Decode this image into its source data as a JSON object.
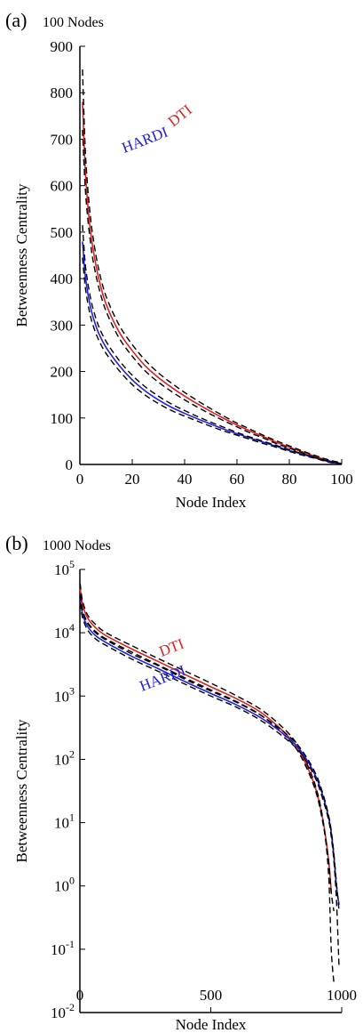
{
  "chart_data": [
    {
      "type": "line",
      "panel_label": "(a)",
      "title": "100 Nodes",
      "xlabel": "Node Index",
      "ylabel": "Betweenness Centrality",
      "xlim": [
        0,
        100
      ],
      "ylim": [
        0,
        900
      ],
      "xticks": [
        0,
        20,
        40,
        60,
        80,
        100
      ],
      "xtick_labels": [
        "0",
        "20",
        "40",
        "60",
        "80",
        "100"
      ],
      "yticks": [
        0,
        100,
        200,
        300,
        400,
        500,
        600,
        700,
        800,
        900
      ],
      "ytick_labels": [
        "0",
        "100",
        "200",
        "300",
        "400",
        "500",
        "600",
        "700",
        "800",
        "900"
      ],
      "grid": false,
      "x": [
        1,
        2,
        3,
        4,
        5,
        7,
        10,
        15,
        20,
        25,
        30,
        35,
        40,
        45,
        50,
        55,
        60,
        65,
        70,
        75,
        80,
        85,
        90,
        95,
        100
      ],
      "series": [
        {
          "name": "DTI",
          "color": "#e02020",
          "values": [
            780,
            640,
            560,
            505,
            465,
            405,
            345,
            285,
            245,
            212,
            187,
            166,
            147,
            130,
            114,
            99,
            85,
            72,
            60,
            48,
            37,
            27,
            17,
            8,
            2
          ]
        },
        {
          "name": "",
          "color": "#000000",
          "dashed": true,
          "values": [
            850,
            685,
            595,
            535,
            490,
            425,
            362,
            300,
            258,
            224,
            197,
            175,
            155,
            137,
            120,
            104,
            89,
            76,
            63,
            51,
            40,
            29,
            19,
            10,
            3
          ]
        },
        {
          "name": "",
          "color": "#000000",
          "dashed": true,
          "values": [
            720,
            600,
            530,
            480,
            440,
            386,
            330,
            272,
            233,
            201,
            177,
            157,
            139,
            123,
            108,
            94,
            81,
            68,
            57,
            45,
            35,
            25,
            15,
            7,
            1
          ]
        },
        {
          "name": "HARDI",
          "color": "#2020e0",
          "values": [
            480,
            410,
            370,
            340,
            318,
            285,
            252,
            213,
            182,
            158,
            139,
            123,
            110,
            98,
            87,
            76,
            66,
            57,
            48,
            39,
            30,
            22,
            14,
            6,
            1
          ]
        },
        {
          "name": "",
          "color": "#000000",
          "dashed": true,
          "values": [
            515,
            435,
            392,
            360,
            336,
            300,
            265,
            224,
            192,
            167,
            147,
            130,
            116,
            103,
            91,
            80,
            69,
            59,
            50,
            41,
            32,
            23,
            15,
            7,
            2
          ]
        },
        {
          "name": "",
          "color": "#000000",
          "dashed": true,
          "values": [
            445,
            385,
            348,
            320,
            300,
            270,
            239,
            202,
            172,
            149,
            131,
            116,
            104,
            93,
            82,
            72,
            63,
            54,
            45,
            37,
            28,
            20,
            13,
            5,
            1
          ]
        }
      ],
      "annotations": [
        {
          "text": "DTI",
          "color": "#e02020"
        },
        {
          "text": "HARDI",
          "color": "#2020e0"
        }
      ]
    },
    {
      "type": "line",
      "panel_label": "(b)",
      "title": "1000 Nodes",
      "xlabel": "Node Index",
      "ylabel": "Betweenness Centrality",
      "xlim": [
        0,
        1000
      ],
      "ylim": [
        0.01,
        100000
      ],
      "yscale": "log",
      "xticks": [
        0,
        500,
        1000
      ],
      "xtick_labels": [
        "0",
        "500",
        "1000"
      ],
      "yticks": [
        0.01,
        0.1,
        1,
        10,
        100,
        1000,
        10000,
        100000
      ],
      "ytick_labels": [
        {
          "base": "10",
          "exp": "-2"
        },
        {
          "base": "10",
          "exp": "-1"
        },
        {
          "base": "10",
          "exp": "0"
        },
        {
          "base": "10",
          "exp": "1"
        },
        {
          "base": "10",
          "exp": "2"
        },
        {
          "base": "10",
          "exp": "3"
        },
        {
          "base": "10",
          "exp": "4"
        },
        {
          "base": "10",
          "exp": "5"
        }
      ],
      "grid": false,
      "x": [
        1,
        10,
        30,
        60,
        100,
        200,
        300,
        400,
        500,
        600,
        700,
        800,
        850,
        900,
        930,
        950,
        960,
        970,
        980,
        990
      ],
      "series": [
        {
          "name": "DTI",
          "color": "#e02020",
          "values": [
            50000,
            28000,
            17000,
            12000,
            9000,
            5500,
            3500,
            2200,
            1400,
            900,
            520,
            220,
            110,
            35,
            10,
            2.5,
            0.8,
            null,
            null,
            null
          ]
        },
        {
          "name": "",
          "color": "#000000",
          "dashed": true,
          "values": [
            60000,
            32000,
            19000,
            13500,
            10000,
            6200,
            3900,
            2500,
            1600,
            1000,
            580,
            250,
            120,
            38,
            10,
            1.5,
            0.1,
            0.03,
            null,
            null
          ]
        },
        {
          "name": "",
          "color": "#000000",
          "dashed": true,
          "values": [
            40000,
            23000,
            14500,
            10500,
            8000,
            4900,
            3100,
            1950,
            1250,
            810,
            470,
            200,
            100,
            32,
            9,
            2.5,
            0.8,
            0.4,
            null,
            null
          ]
        },
        {
          "name": "HARDI",
          "color": "#2020e0",
          "values": [
            35000,
            20000,
            12500,
            9000,
            7000,
            4200,
            2700,
            1700,
            1100,
            720,
            430,
            210,
            125,
            55,
            25,
            12,
            7,
            3,
            1,
            0.5
          ]
        },
        {
          "name": "",
          "color": "#000000",
          "dashed": true,
          "values": [
            40000,
            22500,
            14000,
            10000,
            7700,
            4600,
            3000,
            1850,
            1200,
            790,
            470,
            230,
            135,
            60,
            27,
            13,
            7.5,
            3.3,
            1.1,
            0.4
          ]
        },
        {
          "name": "",
          "color": "#000000",
          "dashed": true,
          "values": [
            30000,
            17500,
            11000,
            8000,
            6300,
            3800,
            2450,
            1550,
            1000,
            660,
            390,
            190,
            115,
            50,
            22,
            11,
            6,
            2.5,
            0.6,
            0.05
          ]
        }
      ],
      "annotations": [
        {
          "text": "DTI",
          "color": "#e02020"
        },
        {
          "text": "HARDI",
          "color": "#2020e0"
        }
      ]
    }
  ]
}
